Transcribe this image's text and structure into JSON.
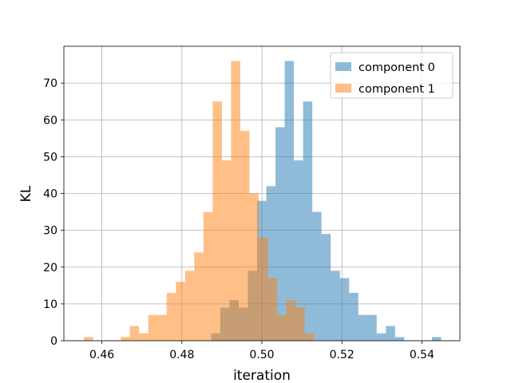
{
  "chart_data": {
    "type": "histogram",
    "title": "",
    "xlabel": "iteration",
    "ylabel": "KL",
    "xlim": [
      0.4505,
      0.5495
    ],
    "ylim": [
      0,
      80
    ],
    "xticks": [
      0.46,
      0.48,
      0.5,
      0.52,
      0.54
    ],
    "xtick_labels": [
      "0.46",
      "0.48",
      "0.50",
      "0.52",
      "0.54"
    ],
    "yticks": [
      0,
      10,
      20,
      30,
      40,
      50,
      60,
      70
    ],
    "ytick_labels": [
      "0",
      "10",
      "20",
      "30",
      "40",
      "50",
      "60",
      "70"
    ],
    "grid": true,
    "legend_position": "top-right",
    "series": [
      {
        "name": "component 0",
        "color": "#1f77b4",
        "alpha": 0.5,
        "bin_edges": [
          0.4873,
          0.4896,
          0.4919,
          0.4942,
          0.4965,
          0.4988,
          0.5011,
          0.5034,
          0.5057,
          0.508,
          0.5103,
          0.5126,
          0.5149,
          0.5172,
          0.5195,
          0.5218,
          0.5241,
          0.5264,
          0.5287,
          0.531,
          0.5333,
          0.5356,
          0.5379,
          0.5402,
          0.5425,
          0.5448
        ],
        "counts": [
          2,
          9,
          11,
          9,
          19,
          38,
          42,
          58,
          76,
          49,
          65,
          35,
          29,
          19,
          17,
          13,
          7,
          7,
          2,
          4,
          1,
          0,
          0,
          0,
          1
        ]
      },
      {
        "name": "component 1",
        "color": "#ff7f0e",
        "alpha": 0.5,
        "bin_edges": [
          0.4555,
          0.4578,
          0.4601,
          0.4624,
          0.4647,
          0.467,
          0.4693,
          0.4716,
          0.4739,
          0.4762,
          0.4785,
          0.4808,
          0.4831,
          0.4854,
          0.4877,
          0.49,
          0.4923,
          0.4946,
          0.4969,
          0.4992,
          0.5015,
          0.5038,
          0.5061,
          0.5084,
          0.5107,
          0.513
        ],
        "counts": [
          1,
          0,
          0,
          0,
          1,
          4,
          2,
          7,
          7,
          13,
          16,
          19,
          24,
          35,
          65,
          49,
          76,
          57,
          40,
          28,
          17,
          7,
          11,
          9,
          2
        ]
      }
    ]
  }
}
